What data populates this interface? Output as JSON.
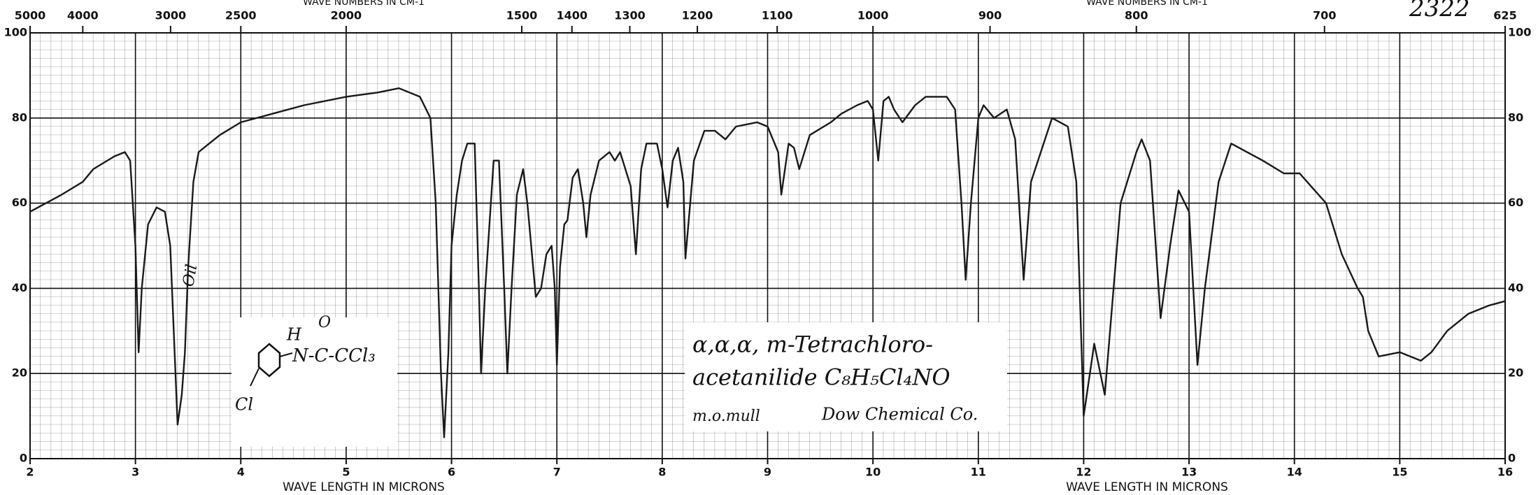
{
  "chart_data": {
    "type": "line",
    "chart_id": "2322",
    "xlabel": "WAVE LENGTH IN MICRONS",
    "x2label": "WAVE NUMBERS IN CM-1",
    "annotations": [
      "α,α,α, m-Tetrachloro-",
      "acetanilide  C₈H₅Cl₄NO",
      "m.o.mull",
      "Dow Chemical Co.",
      "Oil"
    ],
    "structure": {
      "h": "H",
      "o": "O",
      "chain": "N-C-CCl₃",
      "cl": "Cl"
    },
    "x": [
      2.0,
      2.3,
      2.5,
      2.6,
      2.8,
      2.9,
      2.95,
      3.0,
      3.03,
      3.06,
      3.12,
      3.2,
      3.28,
      3.33,
      3.38,
      3.4,
      3.44,
      3.47,
      3.5,
      3.55,
      3.6,
      3.7,
      3.8,
      4.0,
      4.3,
      4.6,
      5.0,
      5.3,
      5.5,
      5.7,
      5.8,
      5.85,
      5.9,
      5.93,
      5.97,
      6.0,
      6.05,
      6.1,
      6.15,
      6.22,
      6.26,
      6.28,
      6.32,
      6.4,
      6.45,
      6.5,
      6.53,
      6.57,
      6.62,
      6.68,
      6.72,
      6.8,
      6.85,
      6.9,
      6.95,
      6.98,
      7.0,
      7.03,
      7.07,
      7.1,
      7.15,
      7.2,
      7.25,
      7.28,
      7.32,
      7.4,
      7.5,
      7.55,
      7.6,
      7.7,
      7.75,
      7.8,
      7.85,
      7.95,
      8.0,
      8.05,
      8.1,
      8.15,
      8.2,
      8.22,
      8.3,
      8.4,
      8.5,
      8.6,
      8.7,
      8.9,
      9.0,
      9.1,
      9.13,
      9.2,
      9.25,
      9.3,
      9.4,
      9.6,
      9.7,
      9.85,
      9.95,
      10.0,
      10.05,
      10.1,
      10.15,
      10.2,
      10.28,
      10.4,
      10.5,
      10.7,
      10.78,
      10.84,
      10.88,
      10.93,
      11.0,
      11.05,
      11.15,
      11.27,
      11.35,
      11.43,
      11.5,
      11.7,
      11.85,
      11.93,
      12.0,
      12.1,
      12.2,
      12.35,
      12.5,
      12.55,
      12.63,
      12.73,
      12.82,
      12.9,
      13.0,
      13.08,
      13.15,
      13.28,
      13.4,
      13.7,
      13.9,
      14.05,
      14.3,
      14.45,
      14.6,
      14.65,
      14.7,
      14.8,
      15.0,
      15.2,
      15.3,
      15.45,
      15.65,
      15.85,
      16.0
    ],
    "series": [
      {
        "color": "#1a1a1a",
        "values": [
          58,
          62,
          65,
          68,
          71,
          72,
          70,
          50,
          25,
          40,
          55,
          59,
          58,
          50,
          20,
          8,
          15,
          25,
          45,
          65,
          72,
          74,
          76,
          79,
          81,
          83,
          85,
          86,
          87,
          85,
          80,
          60,
          20,
          5,
          25,
          50,
          62,
          70,
          74,
          74,
          40,
          20,
          40,
          70,
          70,
          40,
          20,
          40,
          62,
          68,
          60,
          38,
          40,
          48,
          50,
          40,
          22,
          45,
          55,
          56,
          66,
          68,
          60,
          52,
          62,
          70,
          72,
          70,
          72,
          64,
          48,
          68,
          74,
          74,
          68,
          59,
          70,
          73,
          65,
          47,
          70,
          77,
          77,
          75,
          78,
          79,
          78,
          72,
          62,
          74,
          73,
          68,
          76,
          79,
          81,
          83,
          84,
          82,
          70,
          84,
          85,
          82,
          79,
          83,
          85,
          85,
          82,
          60,
          42,
          60,
          80,
          83,
          80,
          82,
          75,
          42,
          65,
          80,
          78,
          65,
          10,
          27,
          15,
          60,
          72,
          75,
          70,
          33,
          50,
          63,
          58,
          22,
          40,
          65,
          74,
          70,
          67,
          67,
          60,
          48,
          40,
          38,
          30,
          24,
          25,
          23,
          25,
          30,
          34,
          36,
          37
        ]
      }
    ],
    "xlim": [
      2,
      16
    ],
    "xticks": [
      2,
      3,
      4,
      5,
      6,
      7,
      8,
      9,
      10,
      11,
      12,
      13,
      14,
      15,
      16
    ],
    "x2ticks": [
      5000,
      4000,
      3000,
      2500,
      2000,
      1500,
      1400,
      1300,
      1200,
      1100,
      1000,
      900,
      800,
      700,
      625
    ],
    "ylim": [
      0,
      100
    ],
    "yticks": [
      0,
      20,
      40,
      60,
      80,
      100
    ],
    "grid": true
  }
}
